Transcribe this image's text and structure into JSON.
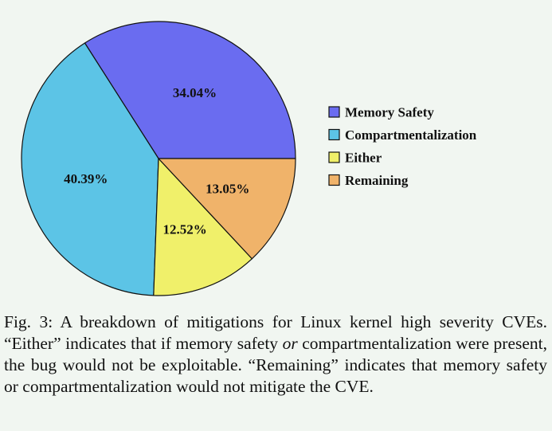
{
  "chart_data": {
    "type": "pie",
    "categories": [
      "Memory Safety",
      "Compartmentalization",
      "Either",
      "Remaining"
    ],
    "values": [
      34.04,
      40.39,
      12.52,
      13.05
    ],
    "value_labels": [
      "34.04%",
      "40.39%",
      "12.52%",
      "13.05%"
    ],
    "colors": [
      "#6a6cf0",
      "#5cc4e6",
      "#f0f06a",
      "#f0b36a"
    ],
    "legend_position": "right",
    "start_angle": "3 o'clock, counter-clockwise"
  },
  "caption": {
    "prefix": "Fig. 3:",
    "part1": " A breakdown of mitigations for Linux kernel high severity CVEs. “Either” indicates that if memory safety ",
    "emphasis": "or",
    "part2": " compartmentalization were present, the bug would not be exploitable. “Remaining” indicates that memory safety or compartmentalization would not mitigate the CVE."
  }
}
